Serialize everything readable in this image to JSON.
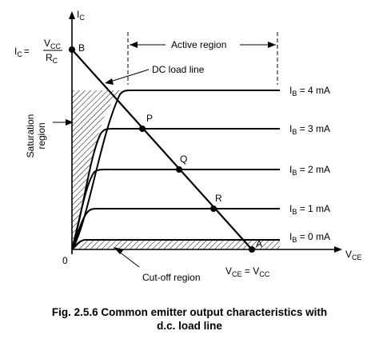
{
  "axes": {
    "y_label": "I",
    "y_sub": "C",
    "x_label": "V",
    "x_sub": "CE",
    "origin": "0"
  },
  "formula": {
    "lhs": "I",
    "lhs_sub": "C",
    "eq": "=",
    "num": "V",
    "num_sub": "CC",
    "den": "R",
    "den_sub": "C"
  },
  "points": {
    "B": "B",
    "P": "P",
    "Q": "Q",
    "R": "R",
    "A": "A"
  },
  "labels": {
    "active_region": "Active region",
    "dc_load_line": "DC load line",
    "saturation_1": "Saturation",
    "saturation_2": "region",
    "cutoff_region": "Cut-off region",
    "vce_eq_lhs": "V",
    "vce_eq_lhs_sub": "CE",
    "vce_eq_mid": " = V",
    "vce_eq_rhs_sub": "CC"
  },
  "curves": [
    {
      "ib_prefix": "I",
      "ib_sub": "B",
      "ib_value": " = 4 mA"
    },
    {
      "ib_prefix": "I",
      "ib_sub": "B",
      "ib_value": " = 3 mA"
    },
    {
      "ib_prefix": "I",
      "ib_sub": "B",
      "ib_value": " = 2 mA"
    },
    {
      "ib_prefix": "I",
      "ib_sub": "B",
      "ib_value": " = 1 mA"
    },
    {
      "ib_prefix": "I",
      "ib_sub": "B",
      "ib_value": " = 0 mA"
    }
  ],
  "caption": {
    "line1": "Fig. 2.5.6 Common emitter output characteristics with",
    "line2": "d.c. load line"
  }
}
